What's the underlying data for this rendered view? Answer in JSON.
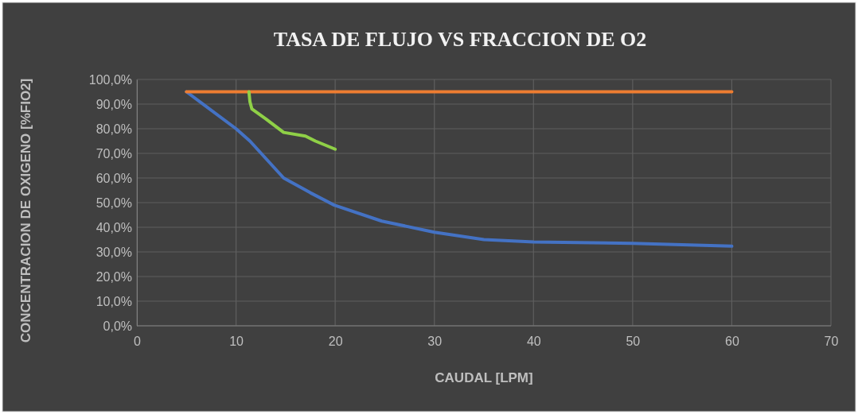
{
  "chart_data": {
    "type": "line",
    "title": "TASA DE FLUJO VS FRACCION DE O2",
    "xlabel": "CAUDAL [LPM]",
    "ylabel": "CONCENTRACION DE OXIGENO [%FIO2]",
    "xlim": [
      0,
      70
    ],
    "xticks": [
      0,
      10,
      20,
      30,
      40,
      50,
      60,
      70
    ],
    "ylim": [
      0,
      100
    ],
    "yticks": [
      {
        "value": 0,
        "label": "0,0%"
      },
      {
        "value": 10,
        "label": "10,0%"
      },
      {
        "value": 20,
        "label": "20,0%"
      },
      {
        "value": 30,
        "label": "30,0%"
      },
      {
        "value": 40,
        "label": "40,0%"
      },
      {
        "value": 50,
        "label": "50,0%"
      },
      {
        "value": 60,
        "label": "60,0%"
      },
      {
        "value": 70,
        "label": "70,0%"
      },
      {
        "value": 80,
        "label": "80,0%"
      },
      {
        "value": 90,
        "label": "90,0%"
      },
      {
        "value": 100,
        "label": "100,0%"
      }
    ],
    "grid": true,
    "marker": "none",
    "line_style": "solid",
    "series": [
      {
        "color": "#4472c4",
        "x": [
          5,
          10,
          11.4,
          14.8,
          17.5,
          19.9,
          24.7,
          30,
          35,
          40,
          50,
          60
        ],
        "values": [
          95,
          80,
          75,
          60,
          54,
          49,
          42.5,
          38,
          35,
          34,
          33.5,
          32.3
        ]
      },
      {
        "color": "#ed7d31",
        "x": [
          5,
          60
        ],
        "values": [
          95,
          95
        ]
      },
      {
        "color": "#8fd047",
        "x": [
          11.3,
          11.4,
          11.6,
          13,
          14.8,
          17,
          18,
          20
        ],
        "values": [
          95,
          91,
          88,
          84,
          78.5,
          77,
          75,
          71.7
        ]
      }
    ]
  }
}
